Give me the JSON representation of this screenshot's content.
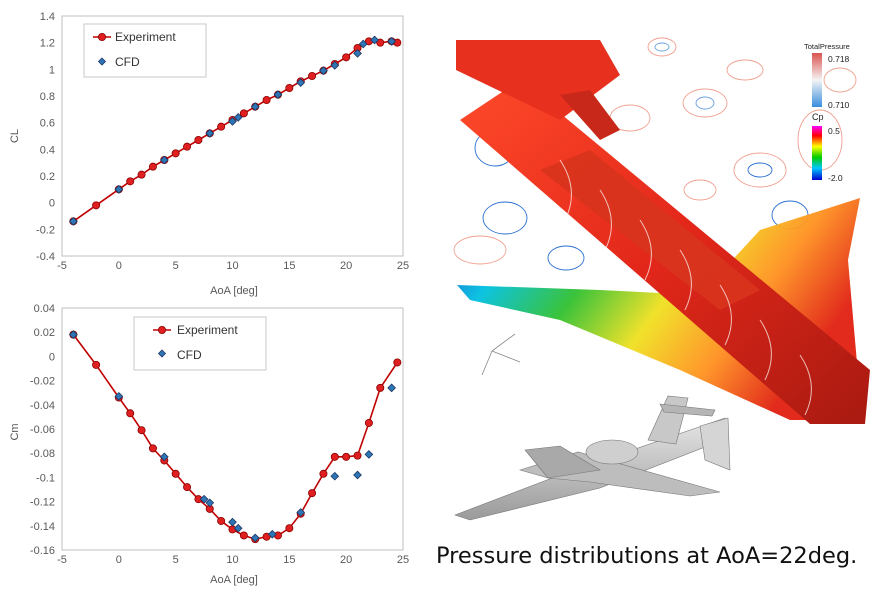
{
  "colors": {
    "experiment": "#c00000",
    "experiment_marker": "#e02020",
    "cfd": "#2e75b6",
    "cfd_edge": "#1f3864",
    "grid": "#d9d9d9",
    "axis_text": "#595959"
  },
  "chart_data": [
    {
      "type": "line",
      "xlabel": "AoA [deg]",
      "ylabel": "CL",
      "xlim": [
        -5,
        25
      ],
      "ylim": [
        -0.4,
        1.4
      ],
      "xticks": [
        -5,
        0,
        5,
        10,
        15,
        20,
        25
      ],
      "yticks": [
        -0.4,
        -0.2,
        0,
        0.2,
        0.4,
        0.6,
        0.8,
        1,
        1.2,
        1.4
      ],
      "ytick_labels": [
        "-0.4",
        "-0.2",
        "0",
        "0.2",
        "0.4",
        "0.6",
        "0.8",
        "1",
        "1.2",
        "1.4"
      ],
      "grid": true,
      "legend_position": "top-left",
      "series": [
        {
          "name": "Experiment",
          "marker": "circle",
          "x": [
            -4,
            -2,
            0,
            1,
            2,
            3,
            4,
            5,
            6,
            7,
            8,
            9,
            10,
            11,
            12,
            13,
            14,
            15,
            16,
            17,
            18,
            19,
            20,
            21,
            22,
            23,
            24,
            24.5
          ],
          "y": [
            -0.14,
            -0.02,
            0.1,
            0.16,
            0.21,
            0.27,
            0.32,
            0.37,
            0.42,
            0.47,
            0.52,
            0.57,
            0.62,
            0.67,
            0.72,
            0.77,
            0.81,
            0.86,
            0.91,
            0.95,
            0.99,
            1.04,
            1.09,
            1.16,
            1.21,
            1.2,
            1.21,
            1.2
          ]
        },
        {
          "name": "CFD",
          "marker": "diamond",
          "x": [
            -4,
            0,
            4,
            8,
            10,
            10.5,
            12,
            14,
            16,
            18,
            19,
            21,
            21.5,
            22.5,
            24
          ],
          "y": [
            -0.14,
            0.1,
            0.32,
            0.52,
            0.61,
            0.64,
            0.72,
            0.81,
            0.9,
            0.99,
            1.03,
            1.12,
            1.19,
            1.22,
            1.21
          ]
        }
      ]
    },
    {
      "type": "line",
      "xlabel": "AoA [deg]",
      "ylabel": "Cm",
      "xlim": [
        -5,
        25
      ],
      "ylim": [
        -0.16,
        0.04
      ],
      "xticks": [
        -5,
        0,
        5,
        10,
        15,
        20,
        25
      ],
      "yticks": [
        -0.16,
        -0.14,
        -0.12,
        -0.1,
        -0.08,
        -0.06,
        -0.04,
        -0.02,
        0,
        0.02,
        0.04
      ],
      "ytick_labels": [
        "-0.16",
        "-0.14",
        "-0.12",
        "-0.1",
        "-0.08",
        "-0.06",
        "-0.04",
        "-0.02",
        "0",
        "0.02",
        "0.04"
      ],
      "grid": true,
      "legend_position": "top-center",
      "series": [
        {
          "name": "Experiment",
          "marker": "circle",
          "x": [
            -4,
            -2,
            0,
            1,
            2,
            3,
            4,
            5,
            6,
            7,
            8,
            9,
            10,
            11,
            12,
            13,
            14,
            15,
            16,
            17,
            18,
            19,
            20,
            21,
            22,
            23,
            24.5
          ],
          "y": [
            0.018,
            -0.007,
            -0.034,
            -0.047,
            -0.061,
            -0.076,
            -0.086,
            -0.097,
            -0.108,
            -0.118,
            -0.126,
            -0.136,
            -0.143,
            -0.148,
            -0.151,
            -0.149,
            -0.148,
            -0.142,
            -0.13,
            -0.113,
            -0.097,
            -0.083,
            -0.083,
            -0.082,
            -0.055,
            -0.026,
            -0.005
          ]
        },
        {
          "name": "CFD",
          "marker": "diamond",
          "x": [
            -4,
            0,
            4,
            7.5,
            8,
            10,
            10.5,
            12,
            13.5,
            16,
            19,
            21,
            22,
            24
          ],
          "y": [
            0.018,
            -0.033,
            -0.083,
            -0.118,
            -0.121,
            -0.137,
            -0.142,
            -0.15,
            -0.147,
            -0.129,
            -0.099,
            -0.098,
            -0.081,
            -0.026
          ]
        }
      ]
    }
  ],
  "visual": {
    "colorbar_total_pressure": {
      "title": "TotalPressure",
      "max_label": "0.718",
      "min_label": "0.710"
    },
    "colorbar_cp": {
      "title": "Cp",
      "max_label": "0.5",
      "min_label": "-2.0"
    }
  },
  "caption": "Pressure distributions at AoA=22deg."
}
